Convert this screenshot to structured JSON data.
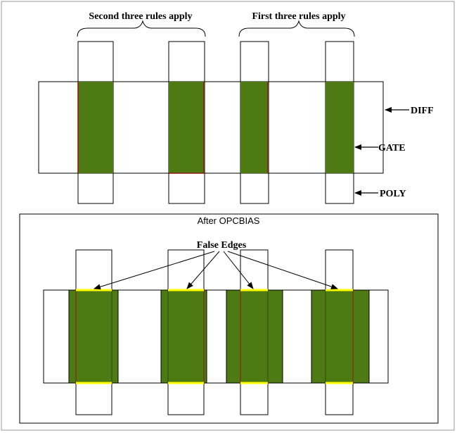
{
  "top_diagram": {
    "brace_left_label": "Second three rules apply",
    "brace_right_label": "First three rules apply",
    "arrow_labels": {
      "diff": "DIFF",
      "gate": "GATE",
      "poly": "POLY"
    }
  },
  "bottom_diagram": {
    "title": "After OPCBIAS",
    "callout_label": "False Edges"
  },
  "colors": {
    "gate_fill": "#4e7a14",
    "gate_edge": "#8a1a10",
    "false_edge": "#ffff00",
    "outline": "#000000",
    "frame": "#999999"
  }
}
